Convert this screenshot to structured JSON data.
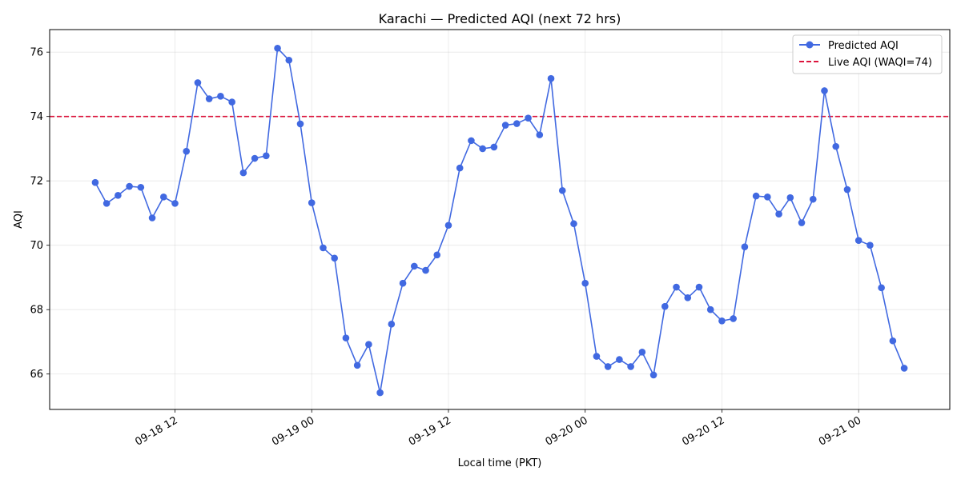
{
  "chart_data": {
    "type": "line",
    "title": "Karachi — Predicted AQI (next 72 hrs)",
    "xlabel": "Local time (PKT)",
    "ylabel": "AQI",
    "x_start": "2025-09-18 05:00",
    "x_step_hours": 1,
    "xlim": [
      "2025-09-18 01:00",
      "2025-09-21 08:00"
    ],
    "ylim": [
      64.9,
      76.7
    ],
    "yticks": [
      66,
      68,
      70,
      72,
      74,
      76
    ],
    "xticks": [
      {
        "label": "09-18 12",
        "time": "2025-09-18 12:00"
      },
      {
        "label": "09-19 00",
        "time": "2025-09-19 00:00"
      },
      {
        "label": "09-19 12",
        "time": "2025-09-19 12:00"
      },
      {
        "label": "09-20 00",
        "time": "2025-09-20 00:00"
      },
      {
        "label": "09-20 12",
        "time": "2025-09-20 12:00"
      },
      {
        "label": "09-21 00",
        "time": "2025-09-21 00:00"
      }
    ],
    "grid": true,
    "legend_position": "top-right",
    "series": [
      {
        "name": "Predicted AQI",
        "color": "#4169e1",
        "marker": "circle",
        "values": [
          71.95,
          71.3,
          71.55,
          71.83,
          71.8,
          70.85,
          71.5,
          71.3,
          72.92,
          75.05,
          74.55,
          74.63,
          74.45,
          72.25,
          72.7,
          72.78,
          76.12,
          75.75,
          73.77,
          71.32,
          69.92,
          69.6,
          67.12,
          66.27,
          66.92,
          65.42,
          67.55,
          68.82,
          69.35,
          69.22,
          69.7,
          70.62,
          72.4,
          73.25,
          73.0,
          73.05,
          73.73,
          73.78,
          73.95,
          73.43,
          75.18,
          71.7,
          70.67,
          68.82,
          66.55,
          66.23,
          66.45,
          66.23,
          66.68,
          65.97,
          68.1,
          68.7,
          68.37,
          68.7,
          68.0,
          67.65,
          67.72,
          69.95,
          71.53,
          71.5,
          70.97,
          71.48,
          70.7,
          71.43,
          74.8,
          73.07,
          71.73,
          70.15,
          70.0,
          68.68,
          67.03,
          66.18
        ]
      }
    ],
    "reference_lines": [
      {
        "name": "Live AQI (WAQI=74)",
        "y": 74,
        "color": "#dc143c",
        "style": "dashed"
      }
    ]
  }
}
